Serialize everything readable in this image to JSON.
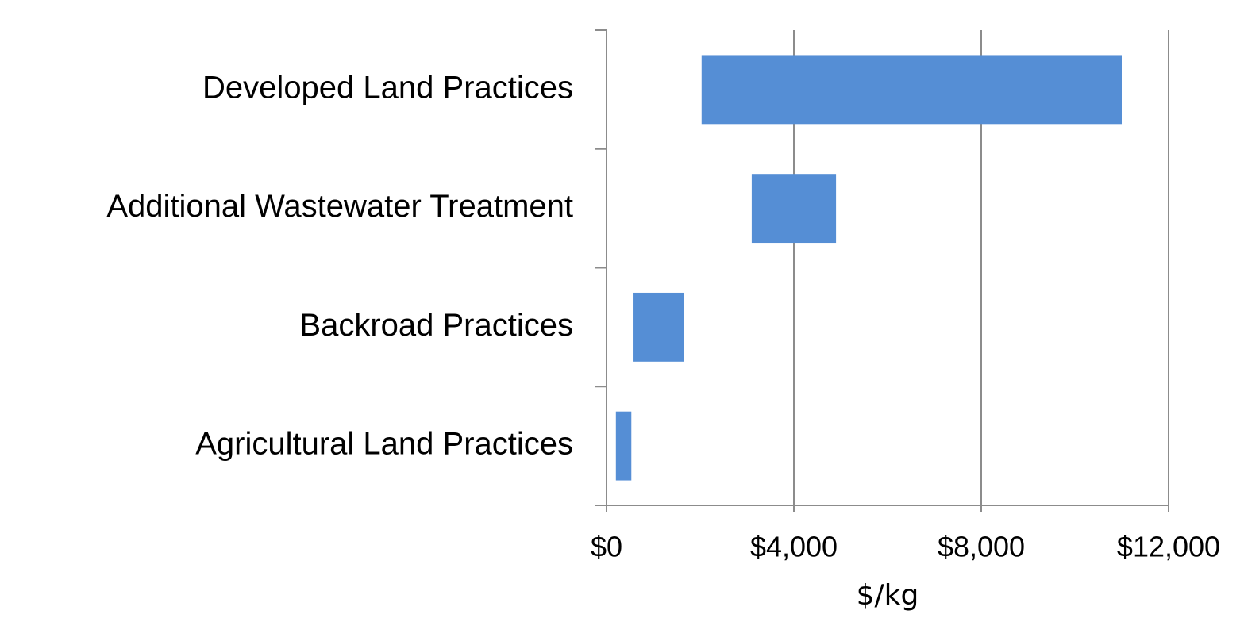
{
  "chart_data": {
    "type": "range_bar",
    "categories": [
      "Developed Land Practices",
      "Additional Wastewater Treatment",
      "Backroad Practices",
      "Agricultural Land Practices"
    ],
    "low": [
      2030,
      3100,
      560,
      200
    ],
    "high": [
      11000,
      4900,
      1660,
      530
    ],
    "color": "#558ed5",
    "xlim": [
      0,
      12000
    ],
    "xticks": [
      {
        "value": 0,
        "label": "$0"
      },
      {
        "value": 4000,
        "label": "$4,000"
      },
      {
        "value": 8000,
        "label": "$8,000"
      },
      {
        "value": 12000,
        "label": "$12,000"
      }
    ],
    "x_label": "$/kg",
    "grid": true
  }
}
